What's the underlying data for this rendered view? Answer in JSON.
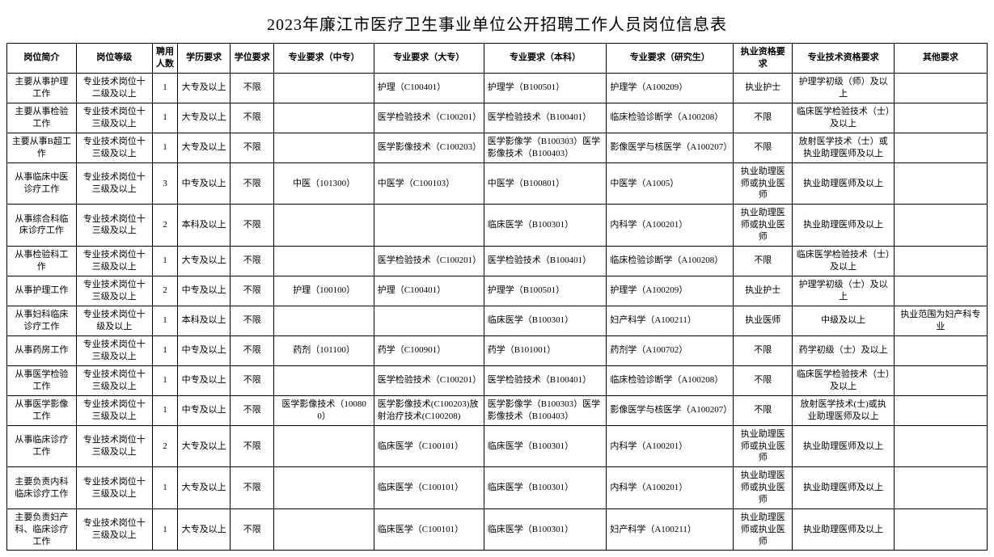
{
  "title": "2023年廉江市医疗卫生事业单位公开招聘工作人员岗位信息表",
  "columns": [
    "岗位简介",
    "岗位等级",
    "聘用人数",
    "学历要求",
    "学位要求",
    "专业要求（中专）",
    "专业要求（大专）",
    "专业要求（本科）",
    "专业要求（研究生）",
    "执业资格要求",
    "专业技术资格要求",
    "其他要求"
  ],
  "rows": [
    {
      "intro": "主要从事护理工作",
      "level": "专业技术岗位十二级及以上",
      "count": "1",
      "edu": "大专及以上",
      "degree": "不限",
      "zz": "",
      "dz": "护理（C100401）",
      "bk": "护理学（B100501）",
      "yjs": "护理学（A100209）",
      "zyzg": "执业护士",
      "zyjs": "护理学初级（师）及以上",
      "other": ""
    },
    {
      "intro": "主要从事检验工作",
      "level": "专业技术岗位十三级及以上",
      "count": "1",
      "edu": "大专及以上",
      "degree": "不限",
      "zz": "",
      "dz": "医学检验技术（C100201）",
      "bk": "医学检验技术（B100401）",
      "yjs": "临床检验诊断学（A100208）",
      "zyzg": "不限",
      "zyjs": "临床医学检验技术（士）及以上",
      "other": ""
    },
    {
      "intro": "主要从事B超工作",
      "level": "专业技术岗位十三级及以上",
      "count": "1",
      "edu": "大专及以上",
      "degree": "不限",
      "zz": "",
      "dz": "医学影像技术（C100203）",
      "bk": "医学影像学（B100303）医学影像技术（B100403）",
      "yjs": "影像医学与核医学（A100207）",
      "zyzg": "不限",
      "zyjs": "放射医学技术（士）或执业助理医师及以上",
      "other": ""
    },
    {
      "intro": "从事临床中医诊疗工作",
      "level": "专业技术岗位十三级及以上",
      "count": "3",
      "edu": "中专及以上",
      "degree": "不限",
      "zz": "中医（101300）",
      "dz": "中医学（C100103）",
      "bk": "中医学（B100801）",
      "yjs": "中医学（A1005）",
      "zyzg": "执业助理医师或执业医师",
      "zyjs": "执业助理医师及以上",
      "other": ""
    },
    {
      "intro": "从事综合科临床诊疗工作",
      "level": "专业技术岗位十三级及以上",
      "count": "2",
      "edu": "本科及以上",
      "degree": "不限",
      "zz": "",
      "dz": "",
      "bk": "临床医学（B100301）",
      "yjs": "内科学（A100201）",
      "zyzg": "执业助理医师或执业医师",
      "zyjs": "执业助理医师及以上",
      "other": ""
    },
    {
      "intro": "从事检验科工作",
      "level": "专业技术岗位十三级及以上",
      "count": "1",
      "edu": "大专及以上",
      "degree": "不限",
      "zz": "",
      "dz": "医学检验技术（C100201）",
      "bk": "医学检验技术（B100401）",
      "yjs": "临床检验诊断学（A100208）",
      "zyzg": "不限",
      "zyjs": "临床医学检验技术（士）及以上",
      "other": ""
    },
    {
      "intro": "从事护理工作",
      "level": "专业技术岗位十三级及以上",
      "count": "2",
      "edu": "中专及以上",
      "degree": "不限",
      "zz": "护理（100100）",
      "dz": "护理（C100401）",
      "bk": "护理学（B100501）",
      "yjs": "护理学（A100209）",
      "zyzg": "执业护士",
      "zyjs": "护理学初级（士）及以上",
      "other": ""
    },
    {
      "intro": "从事妇科临床诊疗工作",
      "level": "专业技术岗位十级及以上",
      "count": "1",
      "edu": "本科及以上",
      "degree": "不限",
      "zz": "",
      "dz": "",
      "bk": "临床医学（B100301）",
      "yjs": "妇产科学（A100211）",
      "zyzg": "执业医师",
      "zyjs": "中级及以上",
      "other": "执业范围为妇产科专业"
    },
    {
      "intro": "从事药房工作",
      "level": "专业技术岗位十三级及以上",
      "count": "1",
      "edu": "中专及以上",
      "degree": "不限",
      "zz": "药剂（101100）",
      "dz": "药学（C100901）",
      "bk": "药学（B101001）",
      "yjs": "药剂学（A100702）",
      "zyzg": "不限",
      "zyjs": "药学初级（士）及以上",
      "other": ""
    },
    {
      "intro": "从事医学检验工作",
      "level": "专业技术岗位十三级及以上",
      "count": "1",
      "edu": "中专及以上",
      "degree": "不限",
      "zz": "",
      "dz": "医学检验技术（C100201）",
      "bk": "医学检验技术（B100401）",
      "yjs": "临床检验诊断学（A100208）",
      "zyzg": "不限",
      "zyjs": "临床医学检验技术（士）及以上",
      "other": ""
    },
    {
      "intro": "从事医学影像工作",
      "level": "专业技术岗位十三级及以上",
      "count": "1",
      "edu": "中专及以上",
      "degree": "不限",
      "zz": "医学影像技术（100800）",
      "dz": "医学影像技术(C100203)放射治疗技术(C100208)",
      "bk": "医学影像学（B100303）医学影像技术（B100403）",
      "yjs": "影像医学与核医学（A100207）",
      "zyzg": "不限",
      "zyjs": "放射医学技术(士)或执业助理医师及以上",
      "other": ""
    },
    {
      "intro": "从事临床诊疗工作",
      "level": "专业技术岗位十三级及以上",
      "count": "2",
      "edu": "大专及以上",
      "degree": "不限",
      "zz": "",
      "dz": "临床医学（C100101）",
      "bk": "临床医学（B100301）",
      "yjs": "内科学（A100201）",
      "zyzg": "执业助理医师或执业医师",
      "zyjs": "执业助理医师及以上",
      "other": ""
    },
    {
      "intro": "主要负责内科临床诊疗工作",
      "level": "专业技术岗位十三级及以上",
      "count": "1",
      "edu": "大专及以上",
      "degree": "不限",
      "zz": "",
      "dz": "临床医学（C100101）",
      "bk": "临床医学（B100301）",
      "yjs": "内科学（A100201）",
      "zyzg": "执业助理医师或执业医师",
      "zyjs": "执业助理医师及以上",
      "other": ""
    },
    {
      "intro": "主要负责妇产科、临床诊疗工作",
      "level": "专业技术岗位十三级及以上",
      "count": "1",
      "edu": "大专及以上",
      "degree": "不限",
      "zz": "",
      "dz": "临床医学（C100101）",
      "bk": "临床医学（B100301）",
      "yjs": "妇产科学（A100211）",
      "zyzg": "执业助理医师或执业医师",
      "zyjs": "执业助理医师及以上",
      "other": ""
    }
  ]
}
